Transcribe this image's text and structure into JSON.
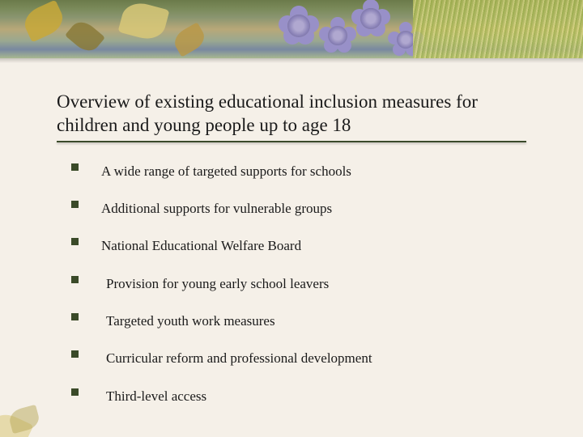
{
  "title": "Overview of existing educational inclusion measures for children and young people up to age 18",
  "title_fontsize": 23,
  "title_color": "#1a1a1a",
  "underline_color": "#3a4a2a",
  "background_color": "#f5f0e8",
  "bullet_color": "#3a4a28",
  "bullet_size": 9,
  "item_fontsize": 17,
  "item_color": "#1a1a1a",
  "banner_height": 72,
  "items": [
    {
      "label": "A wide range of targeted supports for schools",
      "indent": "a"
    },
    {
      "label": "Additional supports for vulnerable groups",
      "indent": "a"
    },
    {
      "label": "National Educational Welfare Board",
      "indent": "a"
    },
    {
      "label": "Provision for young early school leavers",
      "indent": "b"
    },
    {
      "label": "Targeted youth work measures",
      "indent": "b"
    },
    {
      "label": "Curricular reform and professional development",
      "indent": "b"
    },
    {
      "label": "Third-level access",
      "indent": "b"
    }
  ]
}
